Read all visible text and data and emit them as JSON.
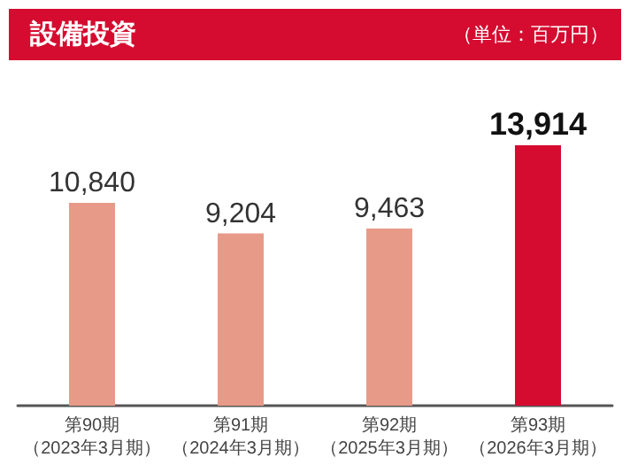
{
  "chart_data": {
    "type": "bar",
    "title": "設備投資",
    "subtitle": "（単位：百万円）",
    "categories": [
      "第90期（2023年3月期）",
      "第91期（2024年3月期）",
      "第92期（2025年3月期）",
      "第93期（2026年3月期）"
    ],
    "values": [
      10840,
      9204,
      9463,
      13914
    ],
    "value_labels": [
      "10,840",
      "9,204",
      "9,463",
      "13,914"
    ],
    "colors": [
      "#e89a88",
      "#e89a88",
      "#e89a88",
      "#d50c30"
    ]
  }
}
